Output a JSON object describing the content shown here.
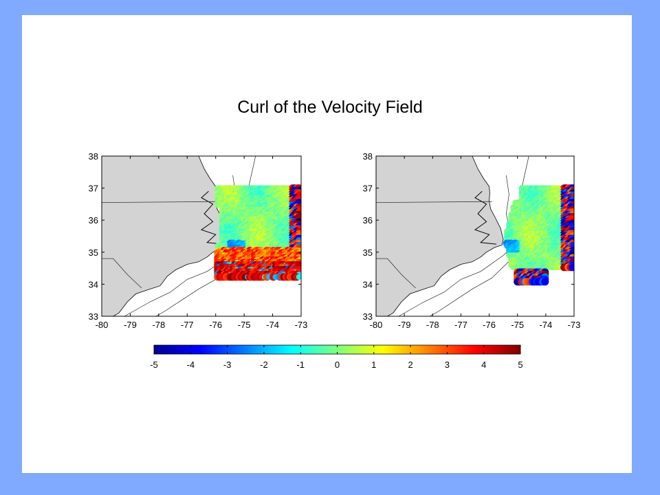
{
  "slide": {
    "background_color": "#80aaff",
    "panel_color": "#ffffff",
    "title": "Curl of the Velocity Field"
  },
  "chart_data": [
    {
      "type": "heatmap",
      "name_hint": "left-map",
      "xlim": [
        -80,
        -73
      ],
      "ylim": [
        33,
        38
      ],
      "x_ticks": [
        -80,
        -79,
        -78,
        -77,
        -76,
        -75,
        -74,
        -73
      ],
      "y_ticks": [
        33,
        34,
        35,
        36,
        37,
        38
      ],
      "x_tick_labels": [
        "-80",
        "-79",
        "-78",
        "-77",
        "-76",
        "-75",
        "-74",
        "-73"
      ],
      "y_tick_labels": [
        "33",
        "34",
        "35",
        "36",
        "37",
        "38"
      ],
      "land_color": "#d3d3d3",
      "region": {
        "lon": [
          -76.0,
          -73.0
        ],
        "lat": [
          34.15,
          37.0
        ]
      },
      "grid": false
    },
    {
      "type": "heatmap",
      "name_hint": "right-map",
      "xlim": [
        -80,
        -73
      ],
      "ylim": [
        33,
        38
      ],
      "x_ticks": [
        -80,
        -79,
        -78,
        -77,
        -76,
        -75,
        -74,
        -73
      ],
      "y_ticks": [
        33,
        34,
        35,
        36,
        37,
        38
      ],
      "x_tick_labels": [
        "-80",
        "-79",
        "-78",
        "-77",
        "-76",
        "-75",
        "-74",
        "-73"
      ],
      "y_tick_labels": [
        "33",
        "34",
        "35",
        "36",
        "37",
        "38"
      ],
      "land_color": "#d3d3d3",
      "region": {
        "lon": [
          -75.6,
          -73.0
        ],
        "lat": [
          34.05,
          37.0
        ]
      },
      "grid": false
    }
  ],
  "colorbar": {
    "colormap": "jet",
    "range": [
      -5,
      5
    ],
    "ticks": [
      -5,
      -4,
      -3,
      -2,
      -1,
      0,
      1,
      2,
      3,
      4,
      5
    ],
    "tick_labels": [
      "-5",
      "-4",
      "-3",
      "-2",
      "-1",
      "0",
      "1",
      "2",
      "3",
      "4",
      "5"
    ]
  }
}
